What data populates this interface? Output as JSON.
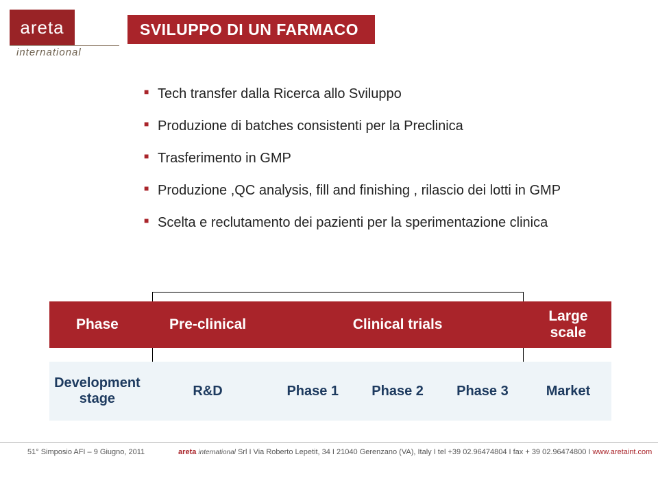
{
  "logo": {
    "word": "areta",
    "sub": "international"
  },
  "slide_title": "SVILUPPO DI UN FARMACO",
  "colors": {
    "brand_red": "#a9242a",
    "logo_red": "#992326",
    "row_bg": "#eef4f8",
    "row_text": "#1d3a5f",
    "bullet_text": "#222222"
  },
  "bullets": [
    "Tech transfer dalla Ricerca allo Sviluppo",
    "Produzione di batches consistenti per la Preclinica",
    "Trasferimento in GMP",
    "Produzione ,QC analysis, fill and finishing , rilascio dei lotti in GMP",
    "Scelta e reclutamento dei pazienti per la sperimentazione clinica"
  ],
  "table": {
    "header": {
      "phase": "Phase",
      "preclinical": "Pre-clinical",
      "clinical": "Clinical trials",
      "large": "Large scale"
    },
    "body": {
      "dev_stage": "Development stage",
      "rd": "R&D",
      "p1": "Phase 1",
      "p2": "Phase 2",
      "p3": "Phase 3",
      "market": "Market"
    }
  },
  "footer": {
    "left": "51° Simposio AFI – 9 Giugno, 2011",
    "brand": "areta",
    "brand_sub": "international",
    "addr": " Srl  I  Via Roberto Lepetit, 34  I  21040 Gerenzano (VA), Italy  I  tel +39 02.96474804  I  fax + 39 02.96474800  I  ",
    "url": "www.aretaint.com"
  }
}
